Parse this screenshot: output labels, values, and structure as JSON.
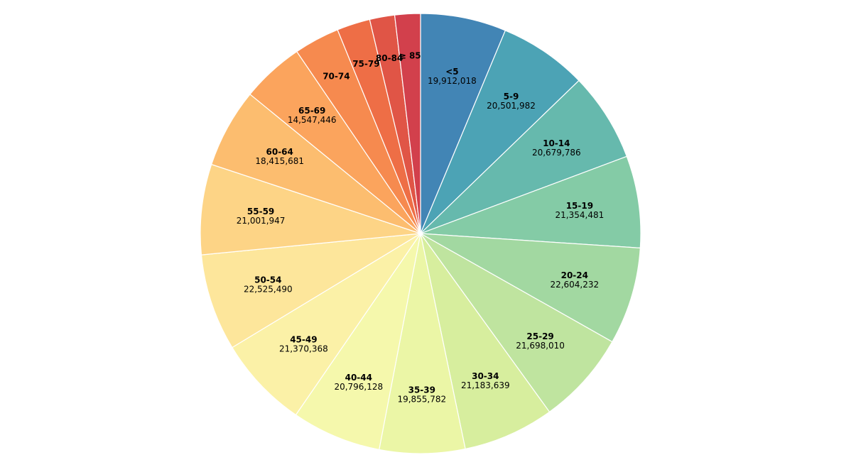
{
  "chart_data": {
    "type": "pie",
    "title": "",
    "start_angle_deg": 0,
    "direction": "clockwise",
    "slices": [
      {
        "label": "<5",
        "value": 19912018,
        "value_text": "19,912,018",
        "color": "#4285b5"
      },
      {
        "label": "5-9",
        "value": 20501982,
        "value_text": "20,501,982",
        "color": "#4ca3b5"
      },
      {
        "label": "10-14",
        "value": 20679786,
        "value_text": "20,679,786",
        "color": "#66b9ad"
      },
      {
        "label": "15-19",
        "value": 21354481,
        "value_text": "21,354,481",
        "color": "#84cba6"
      },
      {
        "label": "20-24",
        "value": 22604232,
        "value_text": "22,604,232",
        "color": "#a2d8a1"
      },
      {
        "label": "25-29",
        "value": 21698010,
        "value_text": "21,698,010",
        "color": "#bfe49f"
      },
      {
        "label": "30-34",
        "value": 21183639,
        "value_text": "21,183,639",
        "color": "#d7ee9e"
      },
      {
        "label": "35-39",
        "value": 19855782,
        "value_text": "19,855,782",
        "color": "#ebf6a6"
      },
      {
        "label": "40-44",
        "value": 20796128,
        "value_text": "20,796,128",
        "color": "#f5f8ac"
      },
      {
        "label": "45-49",
        "value": 21370368,
        "value_text": "21,370,368",
        "color": "#fbf1a7"
      },
      {
        "label": "50-54",
        "value": 22525490,
        "value_text": "22,525,490",
        "color": "#fde69b"
      },
      {
        "label": "55-59",
        "value": 21001947,
        "value_text": "21,001,947",
        "color": "#fdd486"
      },
      {
        "label": "60-64",
        "value": 18415681,
        "value_text": "18,415,681",
        "color": "#fcbd6f"
      },
      {
        "label": "65-69",
        "value": 14547446,
        "value_text": "14,547,446",
        "color": "#fba45d"
      },
      {
        "label": "70-74",
        "value": 10587721,
        "value_text": "10,587,721",
        "color": "#f68a4f"
      },
      {
        "label": "75-79",
        "value": 7730129,
        "value_text": "7,730,129",
        "color": "#ee6e46"
      },
      {
        "label": "80-84",
        "value": 5811429,
        "value_text": "5,811,429",
        "color": "#e05546"
      },
      {
        "label": "≥ 85",
        "value": 5938752,
        "value_text": "5,938,752",
        "color": "#d2404c"
      }
    ],
    "value_labels_visible_min_value": 14000000
  }
}
